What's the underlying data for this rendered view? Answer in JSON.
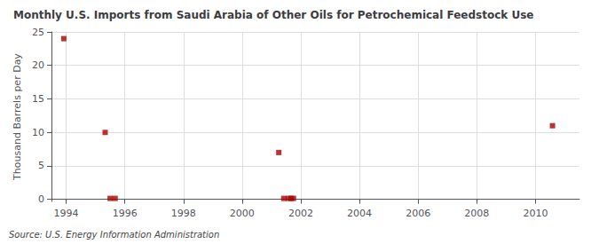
{
  "chart_data": {
    "type": "scatter",
    "title": "Monthly U.S. Imports from Saudi Arabia of Other Oils for Petrochemical Feedstock Use",
    "ylabel": "Thousand Barrels per Day",
    "source": "Source: U.S. Energy Information Administration",
    "x": [
      1993.92,
      1995.33,
      1995.5,
      1995.67,
      2001.25,
      2001.42,
      2001.58,
      2001.67,
      2001.75,
      2010.58
    ],
    "values": [
      24,
      10,
      0.15,
      0.15,
      7,
      0.15,
      0.15,
      0.15,
      0.15,
      11
    ],
    "color": "#aa0000",
    "marker": "square",
    "xlim": [
      1993.5,
      2011.5
    ],
    "ylim": [
      -0.3,
      25
    ],
    "xticks": [
      1994,
      1996,
      1998,
      2000,
      2002,
      2004,
      2006,
      2008,
      2010
    ],
    "yticks": [
      0,
      5,
      10,
      15,
      20,
      25
    ],
    "grid": true
  }
}
